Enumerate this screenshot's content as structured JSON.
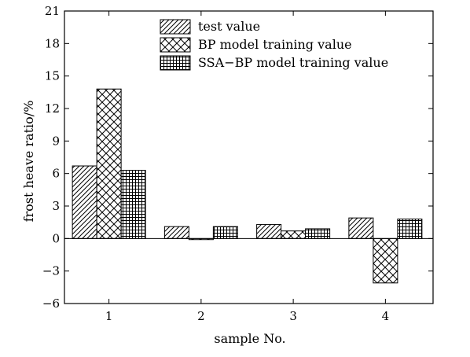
{
  "chart_data": {
    "type": "bar",
    "xlabel": "sample No.",
    "ylabel": "frost heave ratio/%",
    "categories": [
      "1",
      "2",
      "3",
      "4"
    ],
    "ylim": [
      -6,
      21
    ],
    "yticks": [
      -6,
      -3,
      0,
      3,
      6,
      9,
      12,
      15,
      18,
      21
    ],
    "ytick_labels": [
      "−6",
      "−3",
      "0",
      "3",
      "6",
      "9",
      "12",
      "15",
      "18",
      "21"
    ],
    "legend_position": "top-right",
    "grid": false,
    "series": [
      {
        "name": "test value",
        "pattern": "diagonal-hatch",
        "values": [
          6.7,
          1.1,
          1.3,
          1.9
        ]
      },
      {
        "name": "BP model training value",
        "pattern": "cross-hatch",
        "values": [
          13.8,
          -0.1,
          0.7,
          -4.1
        ]
      },
      {
        "name": "SSA−BP model training value",
        "pattern": "grid-hatch",
        "values": [
          6.3,
          1.1,
          0.9,
          1.8
        ]
      }
    ]
  }
}
